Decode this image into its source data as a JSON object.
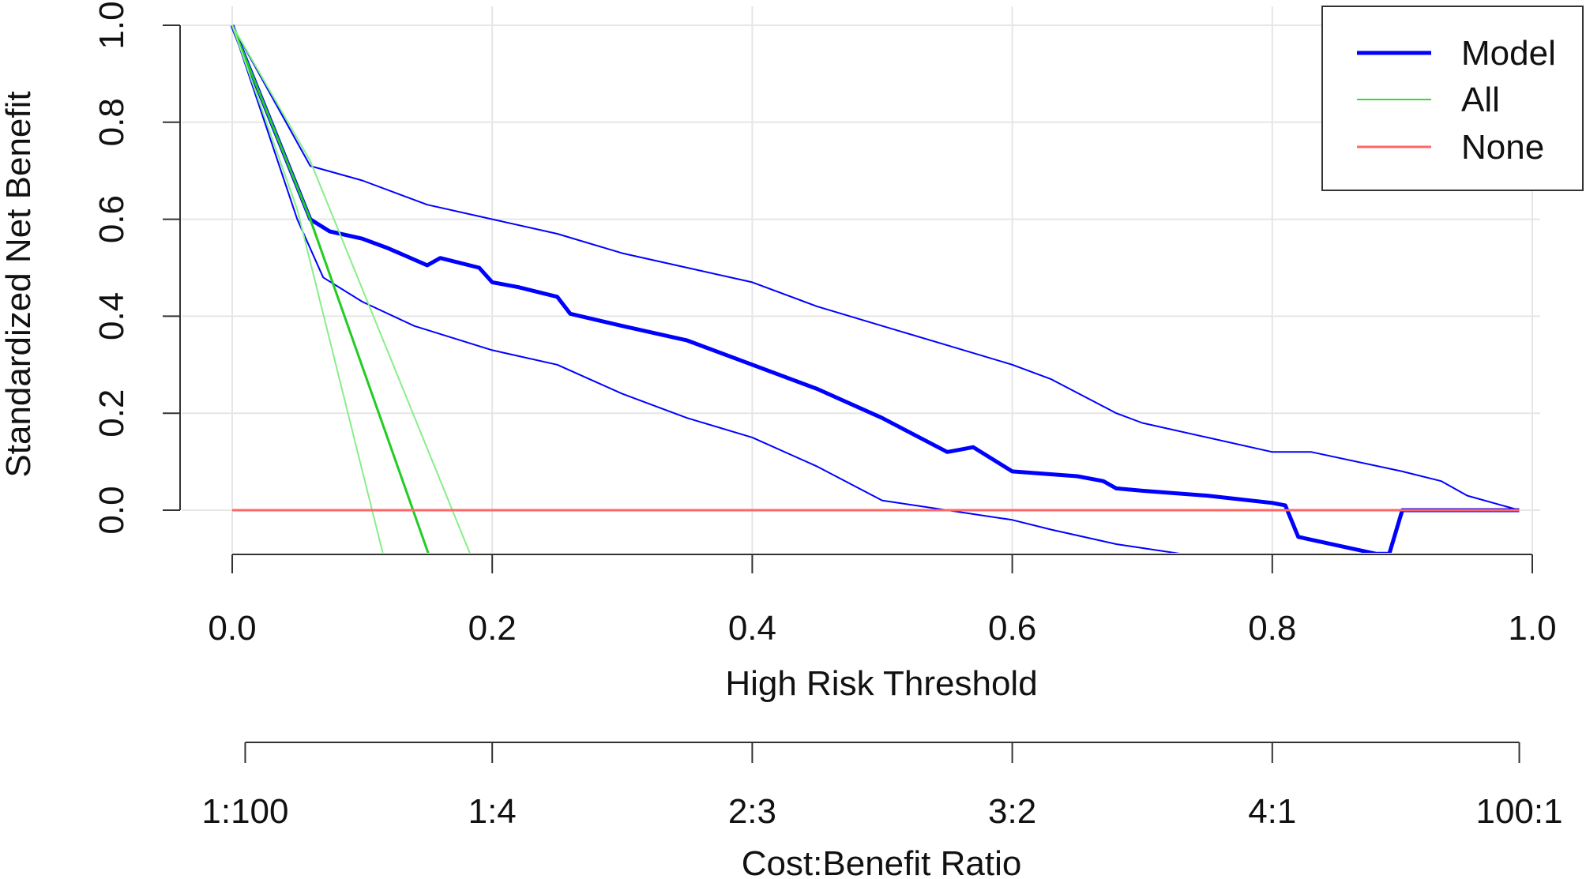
{
  "chart_data": {
    "type": "line",
    "title": "",
    "xlabel": "High Risk Threshold",
    "ylabel": "Standardized Net Benefit",
    "secondary_xlabel": "Cost:Benefit Ratio",
    "xlim": [
      0,
      1
    ],
    "ylim": [
      -0.09,
      1.0
    ],
    "x_ticks": [
      0,
      0.2,
      0.4,
      0.6,
      0.8,
      1.0
    ],
    "x_tick_labels": [
      "0.0",
      "0.2",
      "0.4",
      "0.6",
      "0.8",
      "1.0"
    ],
    "y_ticks": [
      0,
      0.2,
      0.4,
      0.6,
      0.8,
      1.0
    ],
    "y_tick_labels": [
      "0.0",
      "0.2",
      "0.4",
      "0.6",
      "0.8",
      "1.0"
    ],
    "secondary_ticks": [
      0.01,
      0.2,
      0.4,
      0.6,
      0.8,
      0.99
    ],
    "secondary_tick_labels": [
      "1:100",
      "1:4",
      "2:3",
      "3:2",
      "4:1",
      "100:1"
    ],
    "grid": true,
    "legend": {
      "position": "top-right",
      "entries": [
        {
          "label": "Model",
          "color": "#0000ff",
          "width": "thick"
        },
        {
          "label": "All",
          "color": "#33dd33",
          "width": "thin"
        },
        {
          "label": "None",
          "color": "#ff6666",
          "width": "thin"
        }
      ]
    },
    "series": [
      {
        "name": "Model",
        "role": "estimate",
        "color": "#0000ff",
        "weight": "thick",
        "x": [
          0.0,
          0.06,
          0.075,
          0.1,
          0.12,
          0.15,
          0.16,
          0.19,
          0.2,
          0.22,
          0.25,
          0.26,
          0.3,
          0.35,
          0.4,
          0.45,
          0.5,
          0.55,
          0.56,
          0.57,
          0.6,
          0.65,
          0.67,
          0.68,
          0.7,
          0.75,
          0.8,
          0.81,
          0.82,
          0.88,
          0.89,
          0.9,
          0.95,
          0.99
        ],
        "y": [
          1.0,
          0.6,
          0.575,
          0.56,
          0.54,
          0.505,
          0.52,
          0.5,
          0.47,
          0.46,
          0.44,
          0.405,
          0.38,
          0.35,
          0.3,
          0.25,
          0.19,
          0.12,
          0.125,
          0.13,
          0.08,
          0.07,
          0.06,
          0.045,
          0.04,
          0.03,
          0.015,
          0.01,
          -0.055,
          -0.09,
          -0.09,
          0.0,
          0.0,
          0.0
        ]
      },
      {
        "name": "Model upper CI",
        "role": "confidence-band",
        "color": "#0000ff",
        "weight": "thin",
        "x": [
          0.0,
          0.06,
          0.1,
          0.15,
          0.2,
          0.25,
          0.3,
          0.35,
          0.4,
          0.45,
          0.5,
          0.55,
          0.6,
          0.63,
          0.68,
          0.7,
          0.75,
          0.8,
          0.83,
          0.9,
          0.93,
          0.95,
          0.99
        ],
        "y": [
          1.0,
          0.71,
          0.68,
          0.63,
          0.6,
          0.57,
          0.53,
          0.5,
          0.47,
          0.42,
          0.38,
          0.34,
          0.3,
          0.27,
          0.2,
          0.18,
          0.15,
          0.12,
          0.12,
          0.08,
          0.06,
          0.03,
          0.0
        ]
      },
      {
        "name": "Model lower CI",
        "role": "confidence-band",
        "color": "#0000ff",
        "weight": "thin",
        "x": [
          0.0,
          0.05,
          0.07,
          0.1,
          0.14,
          0.2,
          0.25,
          0.3,
          0.35,
          0.4,
          0.45,
          0.5,
          0.55,
          0.6,
          0.63,
          0.68,
          0.73
        ],
        "y": [
          1.0,
          0.6,
          0.48,
          0.43,
          0.38,
          0.33,
          0.3,
          0.24,
          0.19,
          0.15,
          0.09,
          0.02,
          0.0,
          -0.02,
          -0.04,
          -0.07,
          -0.09
        ]
      },
      {
        "name": "All",
        "role": "estimate",
        "color": "#22cc22",
        "weight": "medium",
        "x": [
          0.0,
          0.06,
          0.151
        ],
        "y": [
          1.0,
          0.6,
          -0.09
        ]
      },
      {
        "name": "All upper CI",
        "role": "confidence-band",
        "color": "#88ee88",
        "weight": "thin",
        "x": [
          0.0,
          0.06,
          0.183
        ],
        "y": [
          1.0,
          0.72,
          -0.09
        ]
      },
      {
        "name": "All lower CI",
        "role": "confidence-band",
        "color": "#88ee88",
        "weight": "thin",
        "x": [
          0.0,
          0.05,
          0.116
        ],
        "y": [
          1.0,
          0.62,
          -0.09
        ]
      },
      {
        "name": "None",
        "role": "estimate",
        "color": "#ff6666",
        "weight": "medium",
        "x": [
          0.0,
          0.99
        ],
        "y": [
          0.0,
          0.0
        ]
      }
    ]
  }
}
